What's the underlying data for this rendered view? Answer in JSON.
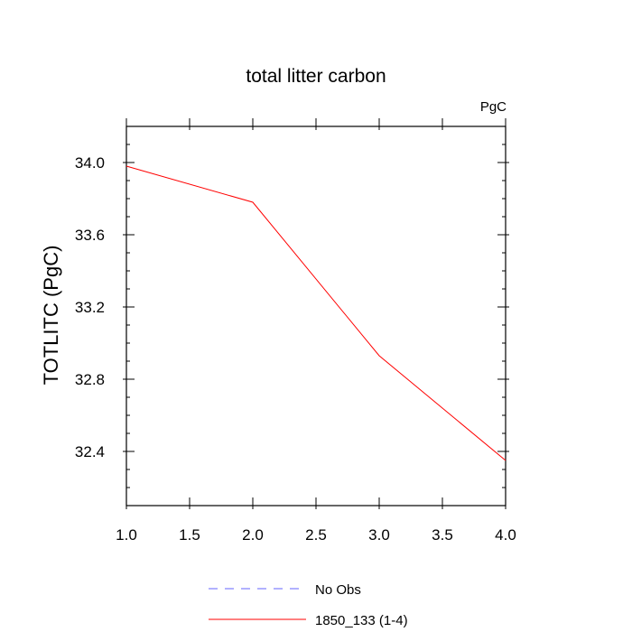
{
  "chart_data": {
    "type": "line",
    "title": "total litter carbon",
    "units_label": "PgC",
    "ylabel": "TOTLITC  (PgC)",
    "xlabel": "",
    "xlim": [
      1.0,
      4.0
    ],
    "ylim": [
      32.1,
      34.2
    ],
    "x_ticks": [
      {
        "value": 1.0,
        "label": "1.0"
      },
      {
        "value": 1.5,
        "label": "1.5"
      },
      {
        "value": 2.0,
        "label": "2.0"
      },
      {
        "value": 2.5,
        "label": "2.5"
      },
      {
        "value": 3.0,
        "label": "3.0"
      },
      {
        "value": 3.5,
        "label": "3.5"
      },
      {
        "value": 4.0,
        "label": "4.0"
      }
    ],
    "y_ticks": [
      {
        "value": 32.4,
        "label": "32.4"
      },
      {
        "value": 32.8,
        "label": "32.8"
      },
      {
        "value": 33.2,
        "label": "33.2"
      },
      {
        "value": 33.6,
        "label": "33.6"
      },
      {
        "value": 34.0,
        "label": "34.0"
      }
    ],
    "series": [
      {
        "name": "1850_133 (1-4)",
        "color": "#ff0000",
        "dash": "solid",
        "x": [
          1.0,
          2.0,
          3.0,
          4.0
        ],
        "values": [
          33.98,
          33.78,
          32.93,
          32.35
        ]
      }
    ],
    "legend": [
      {
        "label": "No Obs",
        "color": "#6666ff",
        "dash": "dashed"
      },
      {
        "label": "1850_133 (1-4)",
        "color": "#ff0000",
        "dash": "solid"
      }
    ],
    "legend_position": "bottom-center",
    "grid": false
  }
}
